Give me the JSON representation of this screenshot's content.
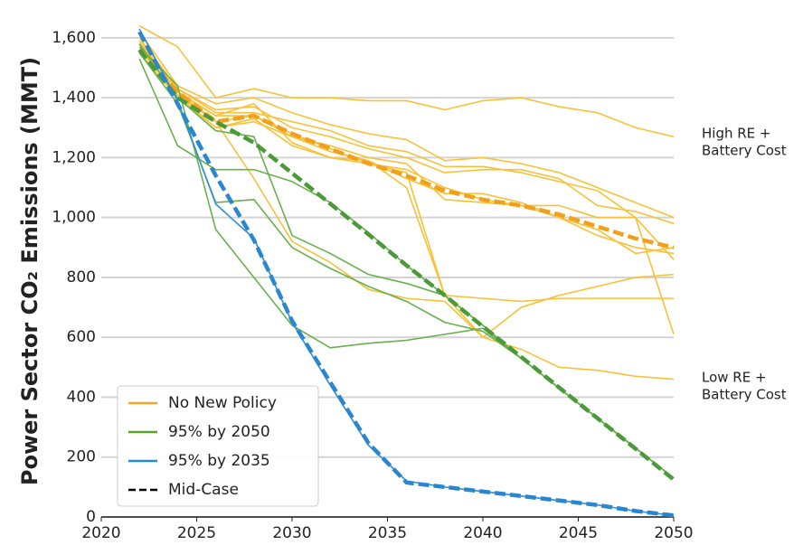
{
  "chart_data": {
    "type": "line",
    "y_label": "Power Sector CO₂ Emissions (MMT)",
    "x": [
      2022,
      2024,
      2026,
      2028,
      2030,
      2032,
      2034,
      2036,
      2038,
      2040,
      2042,
      2044,
      2046,
      2048,
      2050
    ],
    "xlim": [
      2020,
      2050
    ],
    "xticks": [
      2020,
      2025,
      2030,
      2035,
      2040,
      2045,
      2050
    ],
    "ylim": [
      0,
      1660
    ],
    "yticks": [
      0,
      200,
      400,
      600,
      800,
      {
        "value": 1000,
        "label": "1,000"
      },
      {
        "value": 1200,
        "label": "1,200"
      },
      {
        "value": 1400,
        "label": "1,400"
      },
      {
        "value": 1600,
        "label": "1,600"
      }
    ],
    "grid": true,
    "legend_position": "lower left",
    "legend": [
      {
        "name": "No New Policy",
        "color": "#f5a623",
        "dash": false
      },
      {
        "name": "95% by 2050",
        "color": "#5aa02c",
        "dash": false
      },
      {
        "name": "95% by 2035",
        "color": "#1f8ad1",
        "dash": false
      },
      {
        "name": "Mid-Case",
        "color": "#000000",
        "dash": true
      }
    ],
    "annotations": [
      {
        "lines": [
          "High RE +",
          "Battery Cost"
        ]
      },
      {
        "lines": [
          "Low RE +",
          "Battery Cost"
        ]
      }
    ],
    "series": [
      {
        "color": "#f7c23a",
        "dash": false,
        "values": [
          1640,
          1570,
          1400,
          1430,
          1400,
          1400,
          1390,
          1390,
          1360,
          1390,
          1400,
          1370,
          1350,
          1300,
          1270
        ]
      },
      {
        "color": "#f7c23a",
        "dash": false,
        "values": [
          1600,
          1430,
          1360,
          1370,
          1300,
          1270,
          1230,
          1200,
          1150,
          1160,
          1160,
          1130,
          1040,
          1020,
          980
        ]
      },
      {
        "color": "#f7c23a",
        "dash": false,
        "values": [
          1580,
          1420,
          1340,
          1380,
          1250,
          1200,
          1180,
          1160,
          1100,
          1060,
          1040,
          1000,
          960,
          880,
          900
        ]
      },
      {
        "color": "#f7c23a",
        "dash": false,
        "values": [
          1550,
          1400,
          1300,
          1320,
          1270,
          1220,
          1190,
          1130,
          1080,
          1080,
          1050,
          1000,
          940,
          900,
          880
        ]
      },
      {
        "color": "#f7c23a",
        "dash": false,
        "values": [
          1620,
          1440,
          1380,
          1400,
          1350,
          1310,
          1280,
          1260,
          1190,
          1200,
          1180,
          1150,
          1100,
          1050,
          1000
        ]
      },
      {
        "color": "#f7c23a",
        "dash": false,
        "values": [
          1600,
          1430,
          1350,
          1350,
          1320,
          1290,
          1240,
          1220,
          1170,
          1170,
          1150,
          1120,
          1090,
          1000,
          860
        ]
      },
      {
        "color": "#f7c23a",
        "dash": false,
        "values": [
          1560,
          1410,
          1320,
          1130,
          920,
          850,
          760,
          730,
          720,
          600,
          560,
          500,
          490,
          470,
          460
        ]
      },
      {
        "color": "#f7c23a",
        "dash": false,
        "values": [
          1590,
          1420,
          1340,
          1340,
          1270,
          1240,
          1200,
          1180,
          1060,
          1050,
          1040,
          1040,
          1000,
          1000,
          610
        ]
      },
      {
        "color": "#f7c23a",
        "dash": false,
        "values": [
          1570,
          1410,
          1300,
          1330,
          1240,
          1200,
          1190,
          1100,
          740,
          730,
          720,
          730,
          730,
          730,
          730
        ]
      },
      {
        "color": "#f7c23a",
        "dash": false,
        "values": [
          1580,
          1420,
          1320,
          1340,
          1280,
          1230,
          1180,
          1150,
          740,
          600,
          700,
          740,
          770,
          800,
          810
        ]
      },
      {
        "color": "#6ab04c",
        "dash": false,
        "values": [
          1530,
          1240,
          1160,
          1160,
          1120,
          1050,
          950,
          840,
          740,
          640,
          530,
          430,
          330,
          230,
          130
        ]
      },
      {
        "color": "#6ab04c",
        "dash": false,
        "values": [
          1570,
          1440,
          960,
          800,
          640,
          565,
          580,
          590,
          610,
          630,
          530,
          430,
          330,
          230,
          130
        ]
      },
      {
        "color": "#6ab04c",
        "dash": false,
        "values": [
          1550,
          1380,
          1050,
          1060,
          900,
          830,
          770,
          720,
          650,
          620,
          530,
          430,
          330,
          230,
          130
        ]
      },
      {
        "color": "#6ab04c",
        "dash": false,
        "values": [
          1580,
          1400,
          1290,
          1270,
          940,
          880,
          810,
          780,
          740,
          640,
          530,
          430,
          330,
          230,
          130
        ]
      },
      {
        "color": "#2e8fd6",
        "dash": false,
        "values": [
          1630,
          1390,
          1045,
          930,
          650,
          440,
          240,
          120,
          100,
          85,
          70,
          55,
          40,
          20,
          5
        ]
      },
      {
        "color": "#f29f1c",
        "dash": true,
        "values": [
          1560,
          1420,
          1320,
          1340,
          1280,
          1230,
          1180,
          1140,
          1090,
          1060,
          1040,
          1010,
          970,
          930,
          900
        ]
      },
      {
        "color": "#4a9a3a",
        "dash": true,
        "values": [
          1560,
          1400,
          1320,
          1250,
          1148,
          1046,
          944,
          840,
          740,
          636,
          535,
          432,
          330,
          228,
          125
        ]
      },
      {
        "color": "#2a86cf",
        "dash": true,
        "values": [
          1620,
          1380,
          1140,
          925,
          655,
          450,
          247,
          115,
          100,
          85,
          70,
          55,
          40,
          20,
          5
        ]
      }
    ]
  }
}
